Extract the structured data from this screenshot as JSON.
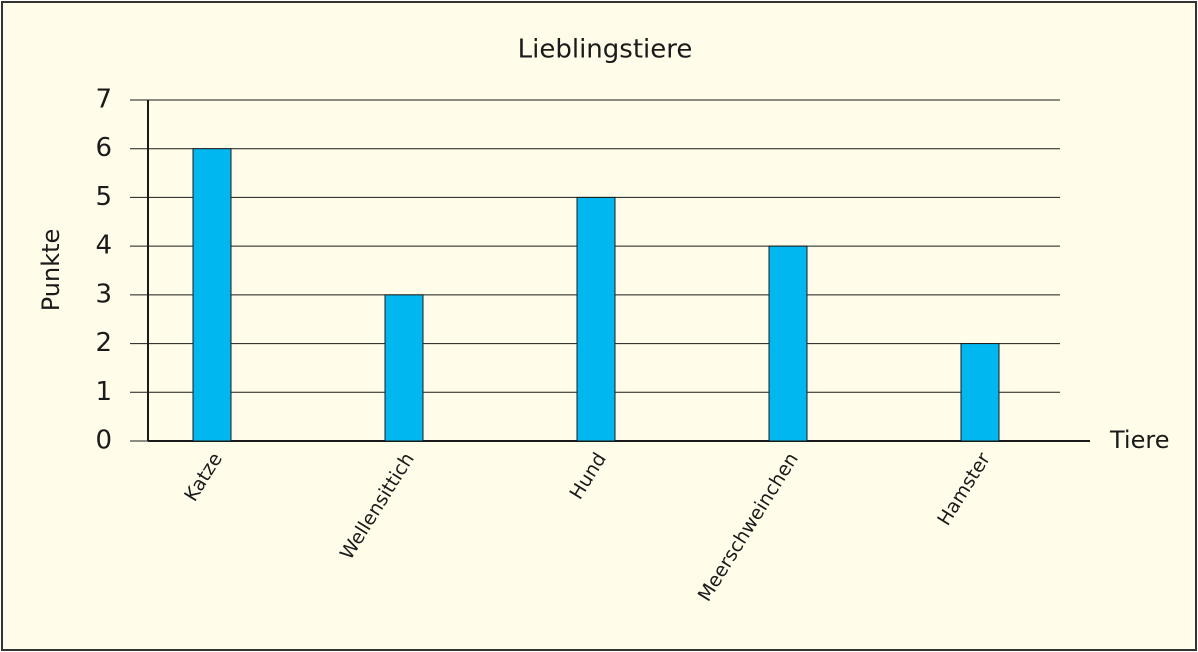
{
  "chart_data": {
    "type": "bar",
    "title": "Lieblingstiere",
    "x_label": "Tiere",
    "y_label": "Punkte",
    "categories": [
      "Katze",
      "Wellensittich",
      "Hund",
      "Meerschweinchen",
      "Hamster"
    ],
    "values": [
      6,
      3,
      5,
      4,
      2
    ],
    "color": "#00b8ef",
    "ylim": [
      0,
      7
    ],
    "yticks": [
      0,
      1,
      2,
      3,
      4,
      5,
      6,
      7
    ],
    "grid": true
  }
}
